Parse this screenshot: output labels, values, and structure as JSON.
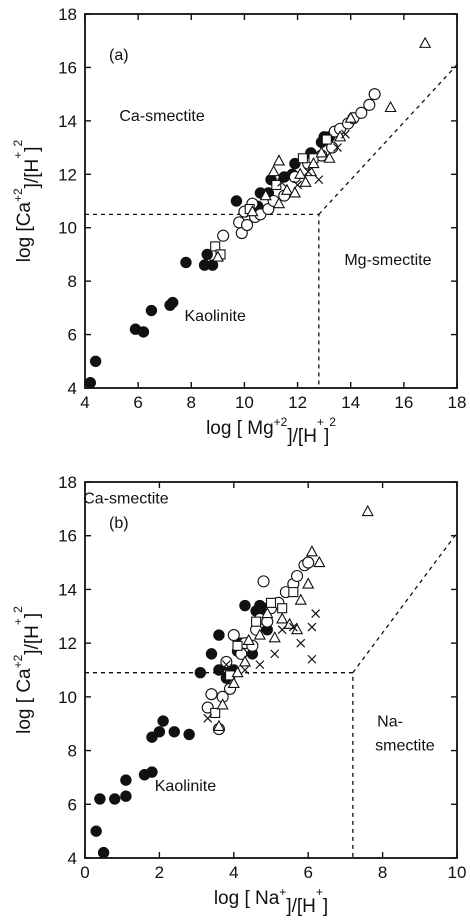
{
  "chart_data": [
    {
      "type": "scatter",
      "panel_label": "(a)",
      "xlabel": {
        "pre": "log [ Mg",
        "sup1": "+2",
        "mid": "]/[H",
        "sup2": "+",
        "post": "]",
        "sup3": "2"
      },
      "ylabel": {
        "pre": "log [Ca",
        "sup1": "+2",
        "mid": "]/[H",
        "sup2": "+",
        "post": "]",
        "sup3": "2"
      },
      "xlim": [
        4,
        18
      ],
      "ylim": [
        4,
        18
      ],
      "xticks": [
        4,
        6,
        8,
        10,
        12,
        14,
        16,
        18
      ],
      "yticks": [
        4,
        6,
        8,
        10,
        12,
        14,
        16,
        18
      ],
      "region_labels": [
        {
          "text": "Ca-smectite",
          "x": 6.9,
          "y": 14.0
        },
        {
          "text": "Mg-smectite",
          "x": 15.4,
          "y": 8.6
        },
        {
          "text": "Kaolinite",
          "x": 8.9,
          "y": 6.5
        }
      ],
      "boundaries": [
        {
          "x": [
            4,
            12.8,
            12.8
          ],
          "y": [
            10.5,
            10.5,
            4
          ]
        },
        {
          "x": [
            12.8,
            18
          ],
          "y": [
            10.5,
            16.1
          ]
        }
      ],
      "series": [
        {
          "marker": "filled-circle",
          "points": [
            [
              4.2,
              4.2
            ],
            [
              4.4,
              5.0
            ],
            [
              5.9,
              6.2
            ],
            [
              6.2,
              6.1
            ],
            [
              6.5,
              6.9
            ],
            [
              7.2,
              7.1
            ],
            [
              7.3,
              7.2
            ],
            [
              7.8,
              8.7
            ],
            [
              8.5,
              8.6
            ],
            [
              8.6,
              9.0
            ],
            [
              8.8,
              8.6
            ],
            [
              9.7,
              11.0
            ],
            [
              10.5,
              10.8
            ],
            [
              10.6,
              11.3
            ],
            [
              10.9,
              11.3
            ],
            [
              11.0,
              11.8
            ],
            [
              11.5,
              11.9
            ],
            [
              11.8,
              12.0
            ],
            [
              11.9,
              12.4
            ],
            [
              12.5,
              12.8
            ],
            [
              12.9,
              13.2
            ],
            [
              13.0,
              13.4
            ],
            [
              13.2,
              13.4
            ],
            [
              13.4,
              13.6
            ]
          ]
        },
        {
          "marker": "open-circle",
          "points": [
            [
              9.2,
              9.7
            ],
            [
              9.8,
              10.2
            ],
            [
              9.9,
              9.8
            ],
            [
              10.0,
              10.6
            ],
            [
              10.1,
              10.1
            ],
            [
              10.3,
              10.9
            ],
            [
              10.4,
              10.4
            ],
            [
              10.6,
              10.5
            ],
            [
              10.9,
              10.7
            ],
            [
              11.1,
              11.0
            ],
            [
              11.5,
              11.2
            ],
            [
              11.9,
              11.9
            ],
            [
              12.4,
              12.4
            ],
            [
              12.9,
              12.7
            ],
            [
              13.3,
              13.0
            ],
            [
              13.4,
              13.6
            ],
            [
              13.6,
              13.7
            ],
            [
              13.9,
              13.9
            ],
            [
              14.1,
              14.1
            ],
            [
              14.4,
              14.3
            ],
            [
              14.7,
              14.6
            ],
            [
              14.9,
              15.0
            ]
          ]
        },
        {
          "marker": "open-square",
          "points": [
            [
              8.9,
              9.3
            ],
            [
              9.1,
              9.0
            ],
            [
              10.2,
              10.7
            ],
            [
              11.2,
              11.6
            ],
            [
              12.2,
              12.6
            ],
            [
              12.6,
              12.6
            ],
            [
              13.1,
              13.3
            ]
          ]
        },
        {
          "marker": "open-triangle",
          "points": [
            [
              9.0,
              8.9
            ],
            [
              10.3,
              10.6
            ],
            [
              10.8,
              11.2
            ],
            [
              11.1,
              12.1
            ],
            [
              11.3,
              12.5
            ],
            [
              11.3,
              10.9
            ],
            [
              11.6,
              11.4
            ],
            [
              11.9,
              11.3
            ],
            [
              12.1,
              12.0
            ],
            [
              12.3,
              11.7
            ],
            [
              12.5,
              12.1
            ],
            [
              12.6,
              12.4
            ],
            [
              12.9,
              12.8
            ],
            [
              13.2,
              12.6
            ],
            [
              13.6,
              13.4
            ],
            [
              14.0,
              14.1
            ],
            [
              15.5,
              14.5
            ],
            [
              16.8,
              16.9
            ]
          ]
        },
        {
          "marker": "cross",
          "points": [
            [
              11.4,
              11.7
            ],
            [
              12.0,
              11.6
            ],
            [
              12.4,
              12.1
            ],
            [
              12.8,
              11.8
            ],
            [
              13.5,
              13.0
            ],
            [
              13.8,
              13.5
            ]
          ]
        }
      ]
    },
    {
      "type": "scatter",
      "panel_label": "(b)",
      "xlabel": {
        "pre": "log [ Na",
        "sup1": "+",
        "mid": "]/[H",
        "sup2": "+",
        "post": "]",
        "sup3": ""
      },
      "ylabel": {
        "pre": "log [ Ca",
        "sup1": "+2",
        "mid": "]/[H",
        "sup2": "+",
        "post": "]",
        "sup3": "2"
      },
      "xlim": [
        0,
        10
      ],
      "ylim": [
        4,
        18
      ],
      "xticks": [
        0,
        2,
        4,
        6,
        8,
        10
      ],
      "yticks": [
        4,
        6,
        8,
        10,
        12,
        14,
        16,
        18
      ],
      "region_labels": [
        {
          "text": "Ca-smectite",
          "x": 1.1,
          "y": 17.2
        },
        {
          "text": "Na-",
          "x": 8.2,
          "y": 8.9
        },
        {
          "text": "smectite",
          "x": 8.6,
          "y": 8.0
        },
        {
          "text": "Kaolinite",
          "x": 2.7,
          "y": 6.5
        }
      ],
      "boundaries": [
        {
          "x": [
            0,
            7.2,
            7.2
          ],
          "y": [
            10.9,
            10.9,
            4
          ]
        },
        {
          "x": [
            7.2,
            10
          ],
          "y": [
            10.9,
            16.1
          ]
        }
      ],
      "series": [
        {
          "marker": "filled-circle",
          "points": [
            [
              0.3,
              5.0
            ],
            [
              0.5,
              4.2
            ],
            [
              0.4,
              6.2
            ],
            [
              0.8,
              6.2
            ],
            [
              1.1,
              6.3
            ],
            [
              1.1,
              6.9
            ],
            [
              1.6,
              7.1
            ],
            [
              1.8,
              7.2
            ],
            [
              1.8,
              8.5
            ],
            [
              2.1,
              9.1
            ],
            [
              2.0,
              8.7
            ],
            [
              2.4,
              8.7
            ],
            [
              2.8,
              8.6
            ],
            [
              3.1,
              10.9
            ],
            [
              3.4,
              11.6
            ],
            [
              3.6,
              12.3
            ],
            [
              3.6,
              11.0
            ],
            [
              3.8,
              11.2
            ],
            [
              3.8,
              10.7
            ],
            [
              4.0,
              11.0
            ],
            [
              4.1,
              11.7
            ],
            [
              4.2,
              12.0
            ],
            [
              4.3,
              13.4
            ],
            [
              4.5,
              11.6
            ],
            [
              4.6,
              13.2
            ],
            [
              4.7,
              13.4
            ],
            [
              4.8,
              13.3
            ],
            [
              4.9,
              12.5
            ]
          ]
        },
        {
          "marker": "open-circle",
          "points": [
            [
              3.3,
              9.6
            ],
            [
              3.4,
              10.1
            ],
            [
              3.6,
              8.8
            ],
            [
              3.7,
              10.0
            ],
            [
              3.8,
              11.3
            ],
            [
              3.9,
              10.3
            ],
            [
              4.0,
              12.3
            ],
            [
              4.2,
              11.6
            ],
            [
              4.3,
              12.0
            ],
            [
              4.5,
              11.9
            ],
            [
              4.6,
              12.5
            ],
            [
              4.7,
              12.9
            ],
            [
              4.8,
              14.3
            ],
            [
              4.9,
              12.8
            ],
            [
              5.0,
              13.3
            ],
            [
              5.2,
              13.5
            ],
            [
              5.4,
              13.9
            ],
            [
              5.6,
              14.2
            ],
            [
              5.7,
              14.5
            ],
            [
              5.9,
              14.9
            ],
            [
              6.0,
              15.0
            ]
          ]
        },
        {
          "marker": "open-square",
          "points": [
            [
              3.5,
              9.4
            ],
            [
              3.9,
              10.8
            ],
            [
              4.1,
              11.9
            ],
            [
              4.6,
              12.8
            ],
            [
              5.0,
              13.5
            ],
            [
              5.3,
              13.3
            ],
            [
              5.6,
              13.9
            ]
          ]
        },
        {
          "marker": "open-triangle",
          "points": [
            [
              3.6,
              8.9
            ],
            [
              3.7,
              9.7
            ],
            [
              4.0,
              10.5
            ],
            [
              4.1,
              10.9
            ],
            [
              4.3,
              11.3
            ],
            [
              4.4,
              12.1
            ],
            [
              4.7,
              12.3
            ],
            [
              4.9,
              13.1
            ],
            [
              5.1,
              12.2
            ],
            [
              5.3,
              12.9
            ],
            [
              5.5,
              12.7
            ],
            [
              5.7,
              12.5
            ],
            [
              5.8,
              13.6
            ],
            [
              6.0,
              14.2
            ],
            [
              6.1,
              15.4
            ],
            [
              6.3,
              15.0
            ],
            [
              7.6,
              16.9
            ]
          ]
        },
        {
          "marker": "cross",
          "points": [
            [
              3.3,
              9.2
            ],
            [
              3.8,
              11.2
            ],
            [
              4.3,
              11.0
            ],
            [
              4.7,
              11.2
            ],
            [
              5.1,
              11.6
            ],
            [
              5.3,
              12.5
            ],
            [
              5.6,
              12.6
            ],
            [
              5.8,
              12.0
            ],
            [
              6.1,
              11.4
            ],
            [
              6.1,
              12.6
            ],
            [
              6.2,
              13.1
            ]
          ]
        }
      ]
    }
  ]
}
